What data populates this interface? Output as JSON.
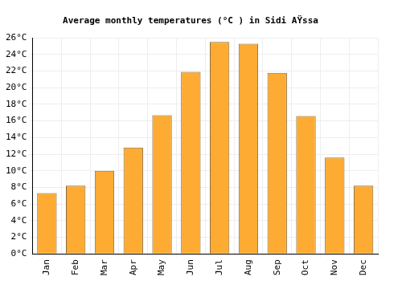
{
  "chart_data": {
    "type": "bar",
    "title": "Average monthly temperatures (°C ) in Sidi AŸssa",
    "categories": [
      "Jan",
      "Feb",
      "Mar",
      "Apr",
      "May",
      "Jun",
      "Jul",
      "Aug",
      "Sep",
      "Oct",
      "Nov",
      "Dec"
    ],
    "values": [
      7.3,
      8.2,
      10.0,
      12.8,
      16.7,
      21.9,
      25.5,
      25.3,
      21.8,
      16.6,
      11.6,
      8.2
    ],
    "color": "#fdab33",
    "ylim": [
      0,
      26
    ],
    "yticks": [
      {
        "value": 0,
        "label": "0°C"
      },
      {
        "value": 2,
        "label": "2°C"
      },
      {
        "value": 4,
        "label": "4°C"
      },
      {
        "value": 6,
        "label": "6°C"
      },
      {
        "value": 8,
        "label": "8°C"
      },
      {
        "value": 10,
        "label": "10°C"
      },
      {
        "value": 12,
        "label": "12°C"
      },
      {
        "value": 14,
        "label": "14°C"
      },
      {
        "value": 16,
        "label": "16°C"
      },
      {
        "value": 18,
        "label": "18°C"
      },
      {
        "value": 20,
        "label": "20°C"
      },
      {
        "value": 22,
        "label": "22°C"
      },
      {
        "value": 24,
        "label": "24°C"
      },
      {
        "value": 26,
        "label": "26°C"
      }
    ],
    "grid": true
  }
}
